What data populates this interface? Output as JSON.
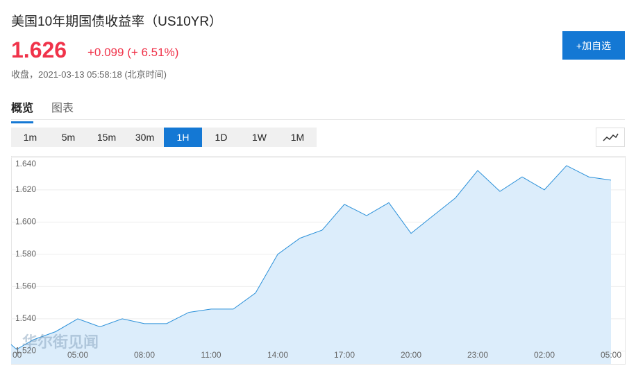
{
  "header": {
    "title": "美国10年期国债收益率（US10YR）",
    "price": "1.626",
    "change": "+0.099 (+ 6.51%)",
    "status": "收盘，2021-03-13 05:58:18 (北京时间)",
    "button": "+加自选"
  },
  "tabs": [
    "概览",
    "图表"
  ],
  "active_tab": 0,
  "intervals": [
    "1m",
    "5m",
    "15m",
    "30m",
    "1H",
    "1D",
    "1W",
    "1M"
  ],
  "active_interval": 4,
  "watermark": "华尔街见闻",
  "chart_data": {
    "type": "area",
    "color": "#2a90d9",
    "fill": "#dcedfb",
    "x": [
      0,
      0.25,
      1,
      2,
      3,
      4,
      5,
      6,
      7,
      8,
      9,
      10,
      11,
      12,
      13,
      14,
      15,
      16,
      17,
      18,
      19,
      20,
      21,
      22,
      23,
      24,
      25,
      26,
      27
    ],
    "values": [
      1.524,
      1.521,
      1.527,
      1.532,
      1.54,
      1.535,
      1.54,
      1.537,
      1.537,
      1.544,
      1.546,
      1.546,
      1.556,
      1.58,
      1.59,
      1.595,
      1.611,
      1.604,
      1.612,
      1.593,
      1.604,
      1.615,
      1.632,
      1.619,
      1.628,
      1.62,
      1.635,
      1.628,
      1.626
    ],
    "xlim": [
      0,
      27.625
    ],
    "ylim": [
      1.512,
      1.641
    ],
    "xticks": [
      {
        "value": 0,
        "label": "00"
      },
      {
        "value": 3,
        "label": "05:00"
      },
      {
        "value": 6,
        "label": "08:00"
      },
      {
        "value": 9,
        "label": "11:00"
      },
      {
        "value": 12,
        "label": "14:00"
      },
      {
        "value": 15,
        "label": "17:00"
      },
      {
        "value": 18,
        "label": "20:00"
      },
      {
        "value": 21,
        "label": "23:00"
      },
      {
        "value": 24,
        "label": "02:00"
      },
      {
        "value": 27,
        "label": "05:00"
      }
    ],
    "yticks": [
      {
        "value": 1.52,
        "label": "1.520"
      },
      {
        "value": 1.54,
        "label": "1.540"
      },
      {
        "value": 1.56,
        "label": "1.560"
      },
      {
        "value": 1.58,
        "label": "1.580"
      },
      {
        "value": 1.6,
        "label": "1.600"
      },
      {
        "value": 1.62,
        "label": "1.620"
      },
      {
        "value": 1.64,
        "label": "1.640"
      }
    ],
    "grid": true
  }
}
